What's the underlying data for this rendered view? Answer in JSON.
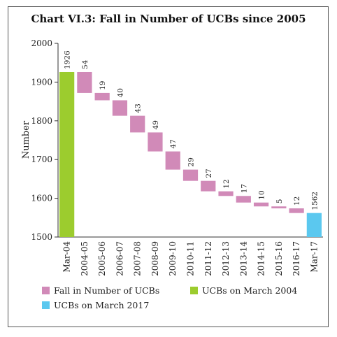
{
  "chart_data": {
    "type": "bar",
    "subtype": "waterfall",
    "title": "Chart VI.3: Fall in Number of UCBs since 2005",
    "xlabel": "",
    "ylabel": "Number",
    "ylim": [
      1500,
      2000
    ],
    "yticks": [
      1500,
      1600,
      1700,
      1800,
      1900,
      2000
    ],
    "grid": false,
    "legend_position": "bottom",
    "categories": [
      "Mar-04",
      "2004-05",
      "2005-06",
      "2006-07",
      "2007-08",
      "2008-09",
      "2009-10",
      "2010-11",
      "2011-12",
      "2012-13",
      "2013-14",
      "2014-15",
      "2015-16",
      "2016-17",
      "Mar-17"
    ],
    "start_value": 1926,
    "falls": [
      54,
      19,
      40,
      43,
      49,
      47,
      29,
      27,
      12,
      17,
      10,
      5,
      12
    ],
    "end_value": 1562,
    "series": [
      {
        "name": "Fall in Number of UCBs",
        "color": "#d18ab8"
      },
      {
        "name": "UCBs on March 2004",
        "color": "#9ccc2e"
      },
      {
        "name": "UCBs on March 2017",
        "color": "#5bc8ef"
      }
    ]
  }
}
